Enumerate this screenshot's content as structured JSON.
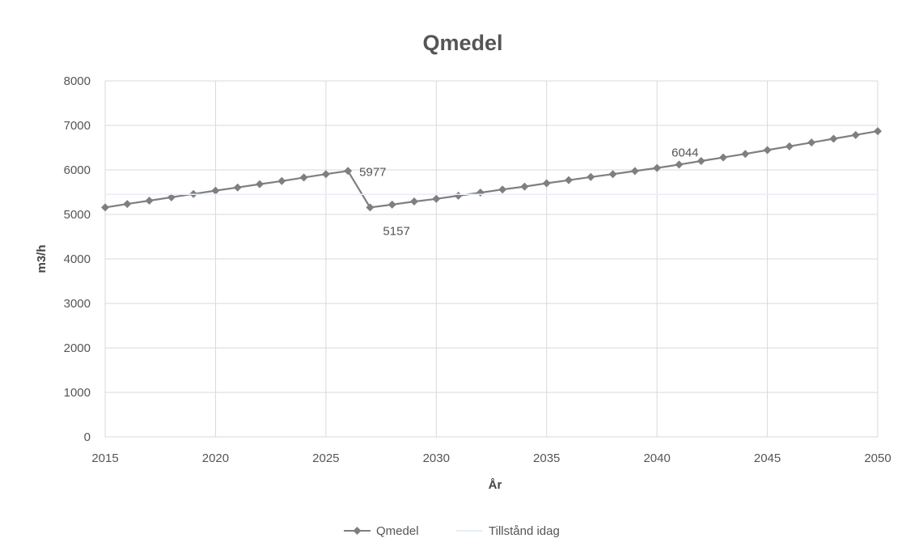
{
  "chart_data": {
    "type": "line",
    "title": "Qmedel",
    "xlabel": "År",
    "ylabel": "m3/h",
    "xlim": [
      2015,
      2050
    ],
    "ylim": [
      0,
      8000
    ],
    "x_ticks": [
      "2015",
      "2020",
      "2025",
      "2030",
      "2035",
      "2040",
      "2045",
      "2050"
    ],
    "y_ticks": [
      "0",
      "1000",
      "2000",
      "3000",
      "4000",
      "5000",
      "6000",
      "7000",
      "8000"
    ],
    "grid": true,
    "legend_position": "bottom",
    "series": [
      {
        "name": "Qmedel",
        "color": "#7f7f7f",
        "marker": "diamond",
        "x": [
          2015,
          2016,
          2017,
          2018,
          2019,
          2020,
          2021,
          2022,
          2023,
          2024,
          2025,
          2026,
          2027,
          2028,
          2029,
          2030,
          2031,
          2032,
          2033,
          2034,
          2035,
          2036,
          2037,
          2038,
          2039,
          2040,
          2041,
          2042,
          2043,
          2044,
          2045,
          2046,
          2047,
          2048,
          2049,
          2050
        ],
        "y": [
          5157,
          5235,
          5310,
          5385,
          5460,
          5535,
          5605,
          5680,
          5750,
          5830,
          5905,
          5977,
          5157,
          5220,
          5290,
          5350,
          5420,
          5490,
          5560,
          5625,
          5700,
          5770,
          5840,
          5905,
          5975,
          6044,
          6120,
          6200,
          6280,
          6360,
          6445,
          6530,
          6615,
          6700,
          6785,
          6870
        ]
      },
      {
        "name": "Tillstånd idag",
        "color": "#e8eef6",
        "marker": "none",
        "x": [
          2015,
          2050
        ],
        "y": [
          5450,
          5450
        ]
      }
    ],
    "annotations": [
      {
        "text": "5977",
        "x": 2026,
        "y": 5977
      },
      {
        "text": "5157",
        "x": 2027,
        "y": 5157
      },
      {
        "text": "6044",
        "x": 2040,
        "y": 6044
      }
    ]
  }
}
